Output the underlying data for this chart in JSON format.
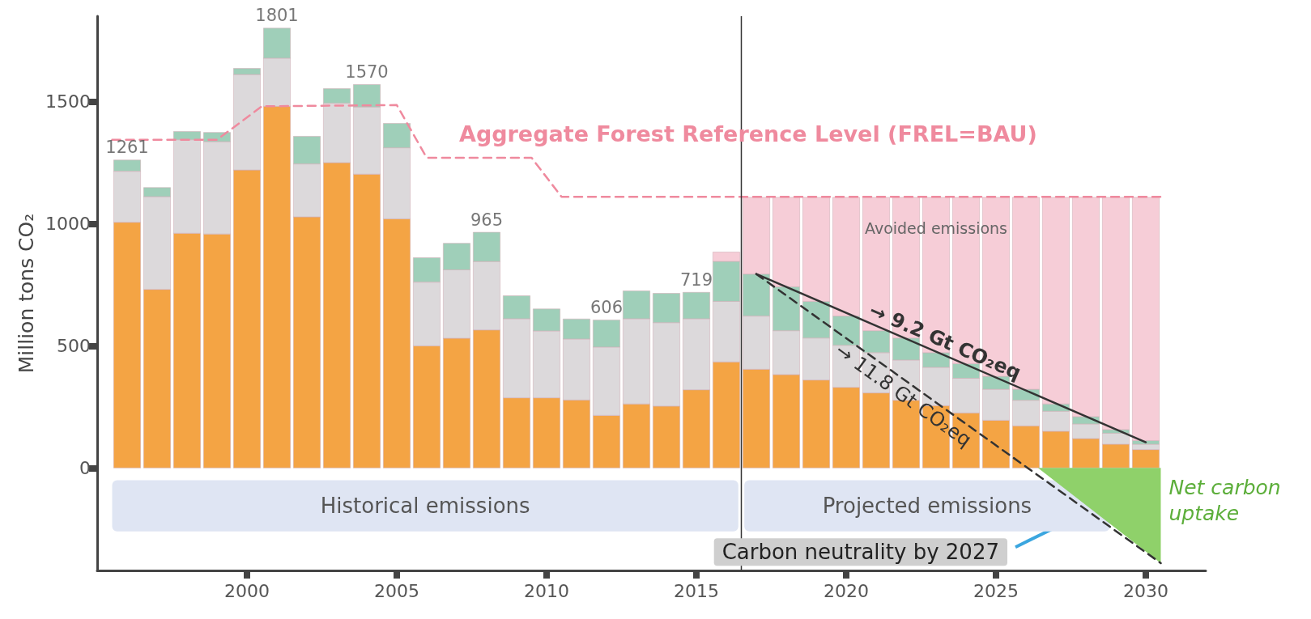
{
  "chart_data": {
    "type": "bar",
    "stacked": true,
    "ylabel": "Million tons CO₂",
    "x": [
      1996,
      1997,
      1998,
      1999,
      2000,
      2001,
      2002,
      2003,
      2004,
      2005,
      2006,
      2007,
      2008,
      2009,
      2010,
      2011,
      2012,
      2013,
      2014,
      2015,
      2016,
      2017,
      2018,
      2019,
      2020,
      2021,
      2022,
      2023,
      2024,
      2025,
      2026,
      2027,
      2028,
      2029,
      2030
    ],
    "xlim": [
      1995,
      2032
    ],
    "xticks": [
      2000,
      2005,
      2010,
      2015,
      2020,
      2025,
      2030
    ],
    "ylim": [
      -420,
      1850
    ],
    "yticks": [
      0,
      500,
      1000,
      1500
    ],
    "series": [
      {
        "color": "#f4a444",
        "values": [
          1006,
          731,
          961,
          958,
          1220,
          1481,
          1028,
          1250,
          1203,
          1020,
          500,
          531,
          565,
          287,
          287,
          278,
          215,
          262,
          253,
          320,
          434,
          404,
          382,
          360,
          330,
          307,
          277,
          255,
          225,
          195,
          172,
          150,
          120,
          97,
          75
        ]
      },
      {
        "color": "#dcd9db",
        "values": [
          209,
          380,
          383,
          378,
          391,
          197,
          217,
          244,
          275,
          291,
          261,
          280,
          280,
          324,
          274,
          250,
          280,
          349,
          342,
          291,
          248,
          218,
          180,
          172,
          172,
          165,
          165,
          157,
          142,
          127,
          105,
          82,
          60,
          45,
          22
        ]
      },
      {
        "color": "#9fcfb9",
        "values": [
          46,
          37,
          34,
          38,
          25,
          123,
          113,
          59,
          92,
          100,
          100,
          109,
          120,
          94,
          90,
          82,
          111,
          114,
          120,
          108,
          164,
          172,
          180,
          150,
          120,
          90,
          90,
          60,
          60,
          53,
          45,
          30,
          30,
          15,
          15
        ]
      },
      {
        "name": "Avoided emissions",
        "color": "#f6cdd7",
        "values": [
          null,
          null,
          null,
          null,
          null,
          null,
          null,
          null,
          null,
          null,
          null,
          null,
          null,
          null,
          null,
          null,
          null,
          null,
          null,
          null,
          38,
          314,
          366,
          426,
          486,
          546,
          576,
          636,
          681,
          733,
          786,
          846,
          898,
          951,
          996
        ]
      },
      {
        "name": "Aggregate Forest Reference Level (FREL=BAU)",
        "type": "line",
        "color": "#ef8a9e",
        "line_style": "dashed",
        "x": [
          1995.5,
          1999,
          2000.5,
          2005,
          2006,
          2009.5,
          2010.5,
          2030.5
        ],
        "values": [
          1344,
          1344,
          1481,
          1486,
          1270,
          1270,
          1110,
          1110
        ]
      },
      {
        "name": "→ 9.2 Gt CO₂eq",
        "type": "line",
        "color": "#333333",
        "line_style": "solid",
        "x": [
          2017,
          2030
        ],
        "values": [
          794,
          105
        ]
      },
      {
        "name": "→ 11.8 Gt CO₂eq",
        "type": "line",
        "color": "#333333",
        "line_style": "dashed",
        "x": [
          2017,
          2030.5
        ],
        "values": [
          794,
          -390
        ]
      },
      {
        "name": "Net carbon uptake",
        "type": "area",
        "color": "#8fd16a",
        "x": [
          2026.4,
          2030.5
        ],
        "values": [
          0,
          -390
        ]
      }
    ],
    "totals": [
      "1261",
      null,
      null,
      null,
      null,
      "1801",
      null,
      null,
      "1570",
      null,
      null,
      null,
      "965",
      null,
      null,
      null,
      "606",
      null,
      null,
      "719",
      null,
      null,
      null,
      null,
      null,
      null,
      null,
      null,
      null,
      null,
      null,
      null,
      null,
      null,
      null
    ],
    "ref_lines": [
      {
        "axis": "x",
        "value": 2016.5,
        "color": "#333333"
      }
    ],
    "bands": [
      {
        "axis": "x",
        "from": 1995.5,
        "to": 2016.4,
        "label": "Historical emissions",
        "color": "#dfe5f3"
      },
      {
        "axis": "x",
        "from": 2016.6,
        "to": 2028.8,
        "label": "Projected emissions",
        "color": "#dfe5f3"
      }
    ],
    "annotations": [
      "Carbon neutrality by 2027"
    ],
    "grid": false,
    "legend": false,
    "marker": "none"
  }
}
